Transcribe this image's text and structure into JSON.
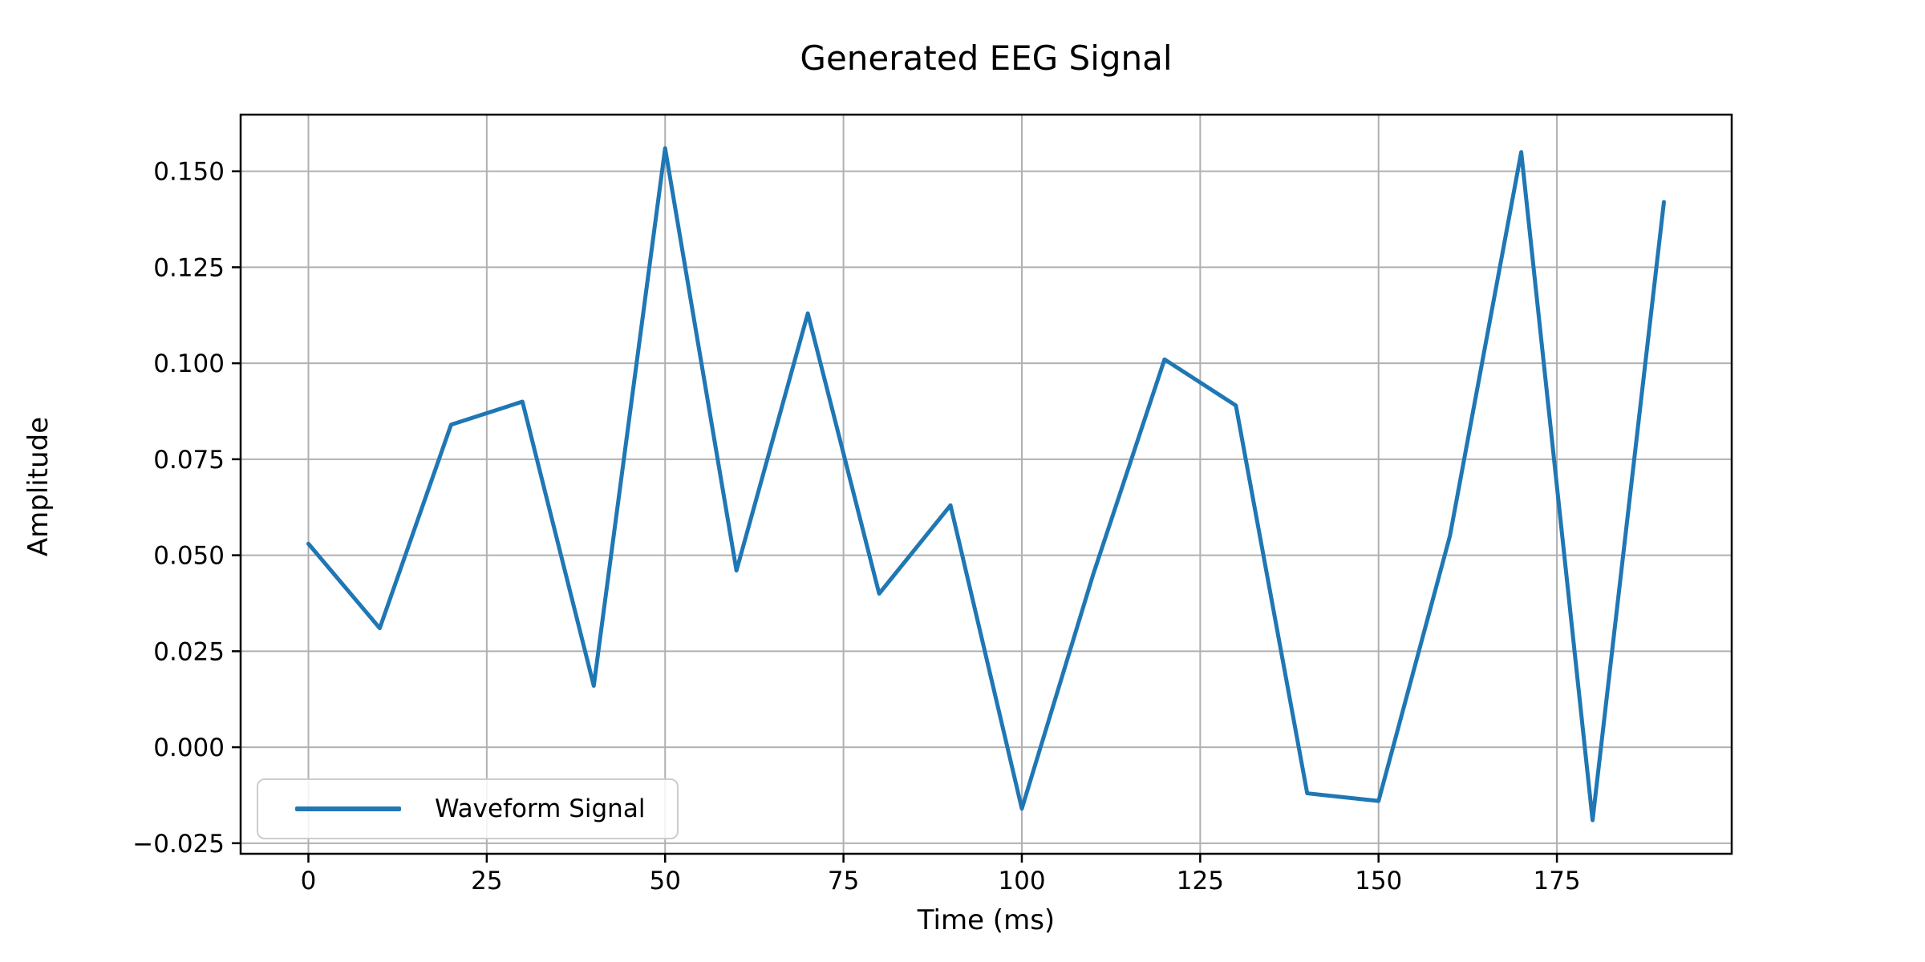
{
  "figure": {
    "background": "#ffffff",
    "text_color": "#000000"
  },
  "chart_data": {
    "type": "line",
    "title": "Generated EEG Signal",
    "xlabel": "Time (ms)",
    "ylabel": "Amplitude",
    "x": [
      0,
      10,
      20,
      30,
      40,
      50,
      60,
      70,
      80,
      90,
      100,
      110,
      120,
      130,
      140,
      150,
      160,
      170,
      180,
      190
    ],
    "y": [
      0.053,
      0.031,
      0.084,
      0.09,
      0.016,
      0.156,
      0.046,
      0.113,
      0.04,
      0.063,
      -0.016,
      0.045,
      0.101,
      0.089,
      -0.012,
      -0.014,
      0.055,
      0.155,
      -0.019,
      0.142
    ],
    "series": [
      {
        "name": "Waveform Signal",
        "color": "#1f77b4",
        "line_width": 5
      }
    ],
    "xlim": [
      -9.5,
      199.5
    ],
    "ylim": [
      -0.02775,
      0.16475
    ],
    "x_ticks": [
      0,
      25,
      50,
      75,
      100,
      125,
      150,
      175
    ],
    "x_tick_labels": [
      "0",
      "25",
      "50",
      "75",
      "100",
      "125",
      "150",
      "175"
    ],
    "y_ticks": [
      -0.025,
      0.0,
      0.025,
      0.05,
      0.075,
      0.1,
      0.125,
      0.15
    ],
    "y_tick_labels": [
      "−0.025",
      "0.000",
      "0.025",
      "0.050",
      "0.075",
      "0.100",
      "0.125",
      "0.150"
    ],
    "grid": true,
    "grid_color": "#b0b0b0",
    "spine_color": "#000000",
    "legend": {
      "label": "Waveform Signal",
      "position": "lower left"
    }
  }
}
